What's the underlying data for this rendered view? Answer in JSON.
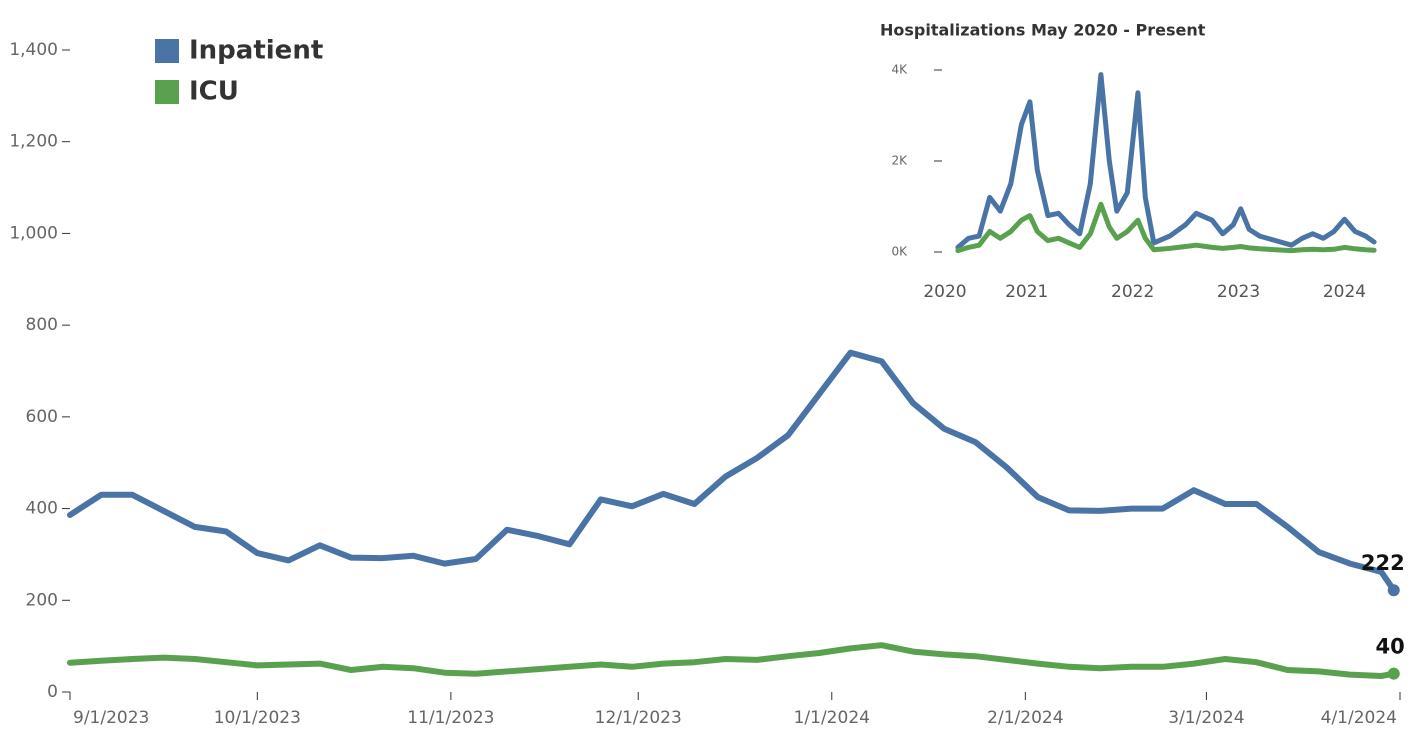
{
  "chart_data": [
    {
      "type": "line",
      "x": [
        "2023-09-01",
        "2023-09-06",
        "2023-09-11",
        "2023-09-16",
        "2023-09-21",
        "2023-09-26",
        "2023-10-01",
        "2023-10-06",
        "2023-10-11",
        "2023-10-16",
        "2023-10-21",
        "2023-10-26",
        "2023-10-31",
        "2023-11-05",
        "2023-11-10",
        "2023-11-15",
        "2023-11-20",
        "2023-11-25",
        "2023-11-30",
        "2023-12-05",
        "2023-12-10",
        "2023-12-15",
        "2023-12-20",
        "2023-12-25",
        "2023-12-30",
        "2024-01-04",
        "2024-01-09",
        "2024-01-14",
        "2024-01-19",
        "2024-01-24",
        "2024-01-29",
        "2024-02-03",
        "2024-02-08",
        "2024-02-13",
        "2024-02-18",
        "2024-02-23",
        "2024-02-28",
        "2024-03-04",
        "2024-03-09",
        "2024-03-14",
        "2024-03-19",
        "2024-03-24",
        "2024-03-29",
        "2024-03-31"
      ],
      "series": [
        {
          "name": "Inpatient",
          "color": "#4a74a5",
          "values": [
            386,
            430,
            430,
            395,
            360,
            350,
            303,
            287,
            320,
            293,
            292,
            297,
            280,
            290,
            354,
            340,
            322,
            420,
            405,
            432,
            410,
            470,
            510,
            560,
            650,
            740,
            721,
            630,
            574,
            545,
            490,
            425,
            396,
            395,
            400,
            400,
            440,
            410,
            410,
            360,
            305,
            280,
            262,
            222
          ]
        },
        {
          "name": "ICU",
          "color": "#59a14f",
          "values": [
            64,
            68,
            72,
            75,
            72,
            65,
            58,
            60,
            62,
            48,
            55,
            52,
            42,
            40,
            45,
            50,
            55,
            60,
            55,
            62,
            65,
            72,
            70,
            78,
            85,
            95,
            102,
            88,
            82,
            78,
            70,
            62,
            55,
            52,
            55,
            55,
            62,
            72,
            65,
            48,
            45,
            38,
            35,
            40
          ]
        }
      ],
      "xlim": [
        "2023-09-01",
        "2024-04-01"
      ],
      "xticks": [
        {
          "value": "2023-09-01",
          "label": "9/1/2023"
        },
        {
          "value": "2023-10-01",
          "label": "10/1/2023"
        },
        {
          "value": "2023-11-01",
          "label": "11/1/2023"
        },
        {
          "value": "2023-12-01",
          "label": "12/1/2023"
        },
        {
          "value": "2024-01-01",
          "label": "1/1/2024"
        },
        {
          "value": "2024-02-01",
          "label": "2/1/2024"
        },
        {
          "value": "2024-03-01",
          "label": "3/1/2024"
        },
        {
          "value": "2024-04-01",
          "label": "4/1/2024"
        }
      ],
      "ylim": [
        0,
        1400
      ],
      "yticks": [
        0,
        200,
        400,
        600,
        800,
        {
          "value": 1000,
          "label": "1,000"
        },
        {
          "value": 1200,
          "label": "1,200"
        },
        {
          "value": 1400,
          "label": "1,400"
        }
      ],
      "legend": "top-left",
      "end_labels": true
    },
    {
      "type": "line",
      "title": "Hospitalizations May 2020 - Present",
      "x": [
        2020.35,
        2020.45,
        2020.55,
        2020.65,
        2020.75,
        2020.85,
        2020.95,
        2021.03,
        2021.1,
        2021.2,
        2021.3,
        2021.4,
        2021.5,
        2021.6,
        2021.7,
        2021.78,
        2021.85,
        2021.95,
        2022.05,
        2022.12,
        2022.2,
        2022.35,
        2022.5,
        2022.6,
        2022.75,
        2022.85,
        2022.95,
        2023.02,
        2023.1,
        2023.2,
        2023.35,
        2023.5,
        2023.6,
        2023.7,
        2023.8,
        2023.9,
        2024.0,
        2024.1,
        2024.2,
        2024.28
      ],
      "series": [
        {
          "color": "#4a74a5",
          "values": [
            100,
            300,
            350,
            1200,
            900,
            1500,
            2800,
            3300,
            1800,
            800,
            850,
            600,
            400,
            1500,
            3900,
            2000,
            900,
            1300,
            3500,
            1200,
            200,
            350,
            600,
            850,
            700,
            400,
            600,
            950,
            500,
            350,
            250,
            150,
            300,
            400,
            300,
            450,
            720,
            450,
            350,
            220
          ]
        },
        {
          "color": "#59a14f",
          "values": [
            30,
            100,
            150,
            450,
            300,
            450,
            700,
            800,
            450,
            250,
            300,
            200,
            100,
            400,
            1050,
            550,
            300,
            450,
            700,
            300,
            50,
            80,
            120,
            150,
            100,
            80,
            100,
            120,
            90,
            70,
            50,
            30,
            50,
            60,
            50,
            60,
            100,
            70,
            50,
            40
          ]
        }
      ],
      "xlim": [
        2020.2,
        2024.26
      ],
      "xticks": [
        2020,
        2021,
        2022,
        2023,
        2024
      ],
      "ylim": [
        0,
        4000
      ],
      "yticks": [
        {
          "value": 0,
          "label": "0K"
        },
        {
          "value": 2000,
          "label": "2K"
        },
        {
          "value": 4000,
          "label": "4K"
        }
      ]
    }
  ]
}
